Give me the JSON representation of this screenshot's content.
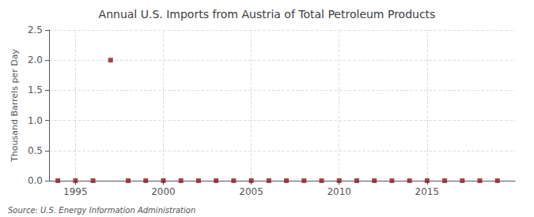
{
  "chart_data": {
    "type": "scatter",
    "title": "Annual U.S. Imports from Austria of Total Petroleum Products",
    "y_label": "Thousand Barrels per Day",
    "source": "Source: U.S. Energy Information Administration",
    "x": [
      1994,
      1995,
      1996,
      1997,
      1998,
      1999,
      2000,
      2001,
      2002,
      2003,
      2004,
      2005,
      2006,
      2007,
      2008,
      2009,
      2010,
      2011,
      2012,
      2013,
      2014,
      2015,
      2016,
      2017,
      2018,
      2019
    ],
    "values": [
      0.0,
      0.0,
      0.0,
      2.0,
      0.0,
      0.0,
      0.0,
      0.0,
      0.0,
      0.0,
      0.0,
      0.0,
      0.0,
      0.0,
      0.0,
      0.0,
      0.0,
      0.0,
      0.0,
      0.0,
      0.0,
      0.0,
      0.0,
      0.0,
      0.0,
      0.0
    ],
    "color": "#8b1a1a",
    "marker": "square",
    "xlim": [
      1993.5,
      2020
    ],
    "xticks": [
      1995,
      2000,
      2005,
      2010,
      2015
    ],
    "ylim": [
      0.0,
      2.5
    ],
    "yticks": [
      {
        "value": 0,
        "label": "0.0"
      },
      0.5,
      {
        "value": 1,
        "label": "1.0"
      },
      1.5,
      {
        "value": 2,
        "label": "2.0"
      },
      2.5
    ],
    "grid": true
  }
}
